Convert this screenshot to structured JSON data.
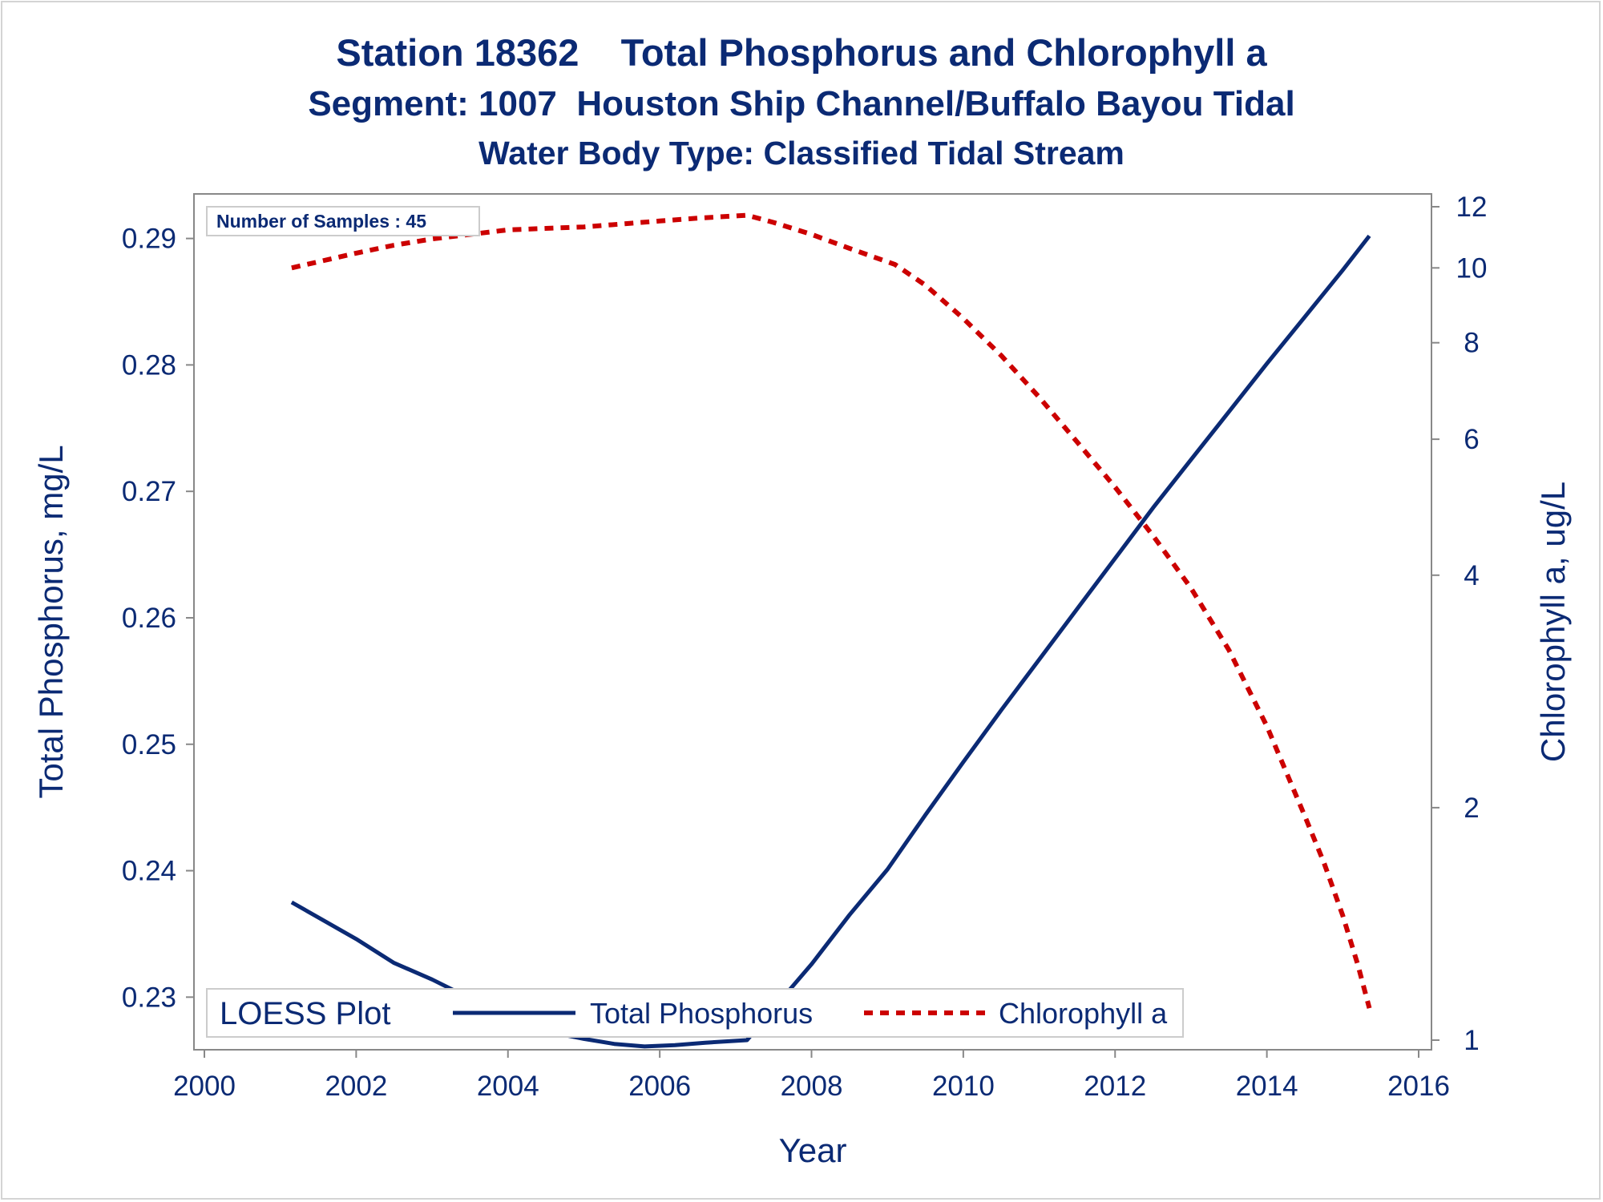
{
  "titles": {
    "line1": "Station 18362    Total Phosphorus and Chlorophyll a",
    "line2": "Segment: 1007  Houston Ship Channel/Buffalo Bayou Tidal",
    "line3": "Water Body Type: Classified Tidal Stream"
  },
  "inset": {
    "samples_label": "Number of Samples : 45"
  },
  "legend": {
    "title": "LOESS Plot",
    "items": [
      {
        "label": "Total Phosphorus",
        "style": "solid",
        "color": "#0b2a74"
      },
      {
        "label": "Chlorophyll a",
        "style": "dashed",
        "color": "#cc0000"
      }
    ]
  },
  "colors": {
    "text": "#0b2a74",
    "phosphorus": "#0b2a74",
    "chlorophyll": "#cc0000",
    "axis": "#888888"
  },
  "chart_data": {
    "type": "line",
    "xlabel": "Year",
    "ylabel_left": "Total Phosphorus, mg/L",
    "ylabel_right": "Chlorophyll a, ug/L",
    "xlim": [
      2000,
      2016
    ],
    "xticks": [
      2000,
      2002,
      2004,
      2006,
      2008,
      2010,
      2012,
      2014,
      2016
    ],
    "ylim_left": [
      0.2266,
      0.2927
    ],
    "yticks_left": [
      0.23,
      0.24,
      0.25,
      0.26,
      0.27,
      0.28,
      0.29
    ],
    "ytick_labels_left": [
      "0.23",
      "0.24",
      "0.25",
      "0.26",
      "0.27",
      "0.28",
      "0.29"
    ],
    "yscale_right": "log",
    "ylim_right": [
      1,
      12
    ],
    "yticks_right": [
      1,
      2,
      4,
      6,
      8,
      10,
      12
    ],
    "grid": false,
    "legend_position": "bottom-left",
    "series": [
      {
        "name": "Total Phosphorus",
        "axis": "left",
        "style": "solid",
        "color": "#0b2a74",
        "x": [
          2001.15,
          2002.0,
          2002.5,
          2003.0,
          2003.5,
          2004.0,
          2004.5,
          2005.0,
          2005.4,
          2005.8,
          2006.2,
          2006.6,
          2007.15,
          2007.6,
          2008.0,
          2008.5,
          2009.0,
          2009.5,
          2010.0,
          2010.5,
          2011.0,
          2011.5,
          2012.0,
          2012.5,
          2013.0,
          2013.5,
          2014.0,
          2014.5,
          2015.0,
          2015.35
        ],
        "y": [
          0.2375,
          0.2346,
          0.2327,
          0.2314,
          0.2299,
          0.2283,
          0.2273,
          0.2267,
          0.2263,
          0.2261,
          0.2262,
          0.2264,
          0.2266,
          0.2298,
          0.2326,
          0.2365,
          0.2401,
          0.2444,
          0.2486,
          0.2527,
          0.2567,
          0.2607,
          0.2647,
          0.2687,
          0.2725,
          0.2763,
          0.2801,
          0.2838,
          0.2875,
          0.2902
        ]
      },
      {
        "name": "Chlorophyll a",
        "axis": "right",
        "style": "dashed",
        "color": "#cc0000",
        "x": [
          2001.15,
          2002.0,
          2002.5,
          2003.0,
          2003.5,
          2004.0,
          2004.5,
          2005.0,
          2005.5,
          2006.0,
          2006.5,
          2007.15,
          2007.5,
          2008.0,
          2008.5,
          2009.1,
          2009.5,
          2010.0,
          2010.5,
          2011.0,
          2011.5,
          2012.0,
          2012.5,
          2013.0,
          2013.5,
          2014.0,
          2014.5,
          2014.75,
          2015.0,
          2015.2,
          2015.35
        ],
        "y": [
          10.0,
          10.45,
          10.7,
          10.9,
          11.05,
          11.2,
          11.25,
          11.3,
          11.4,
          11.5,
          11.6,
          11.7,
          11.45,
          11.05,
          10.6,
          10.1,
          9.5,
          8.6,
          7.7,
          6.8,
          5.95,
          5.2,
          4.5,
          3.85,
          3.2,
          2.55,
          1.95,
          1.7,
          1.45,
          1.25,
          1.1
        ]
      }
    ]
  }
}
